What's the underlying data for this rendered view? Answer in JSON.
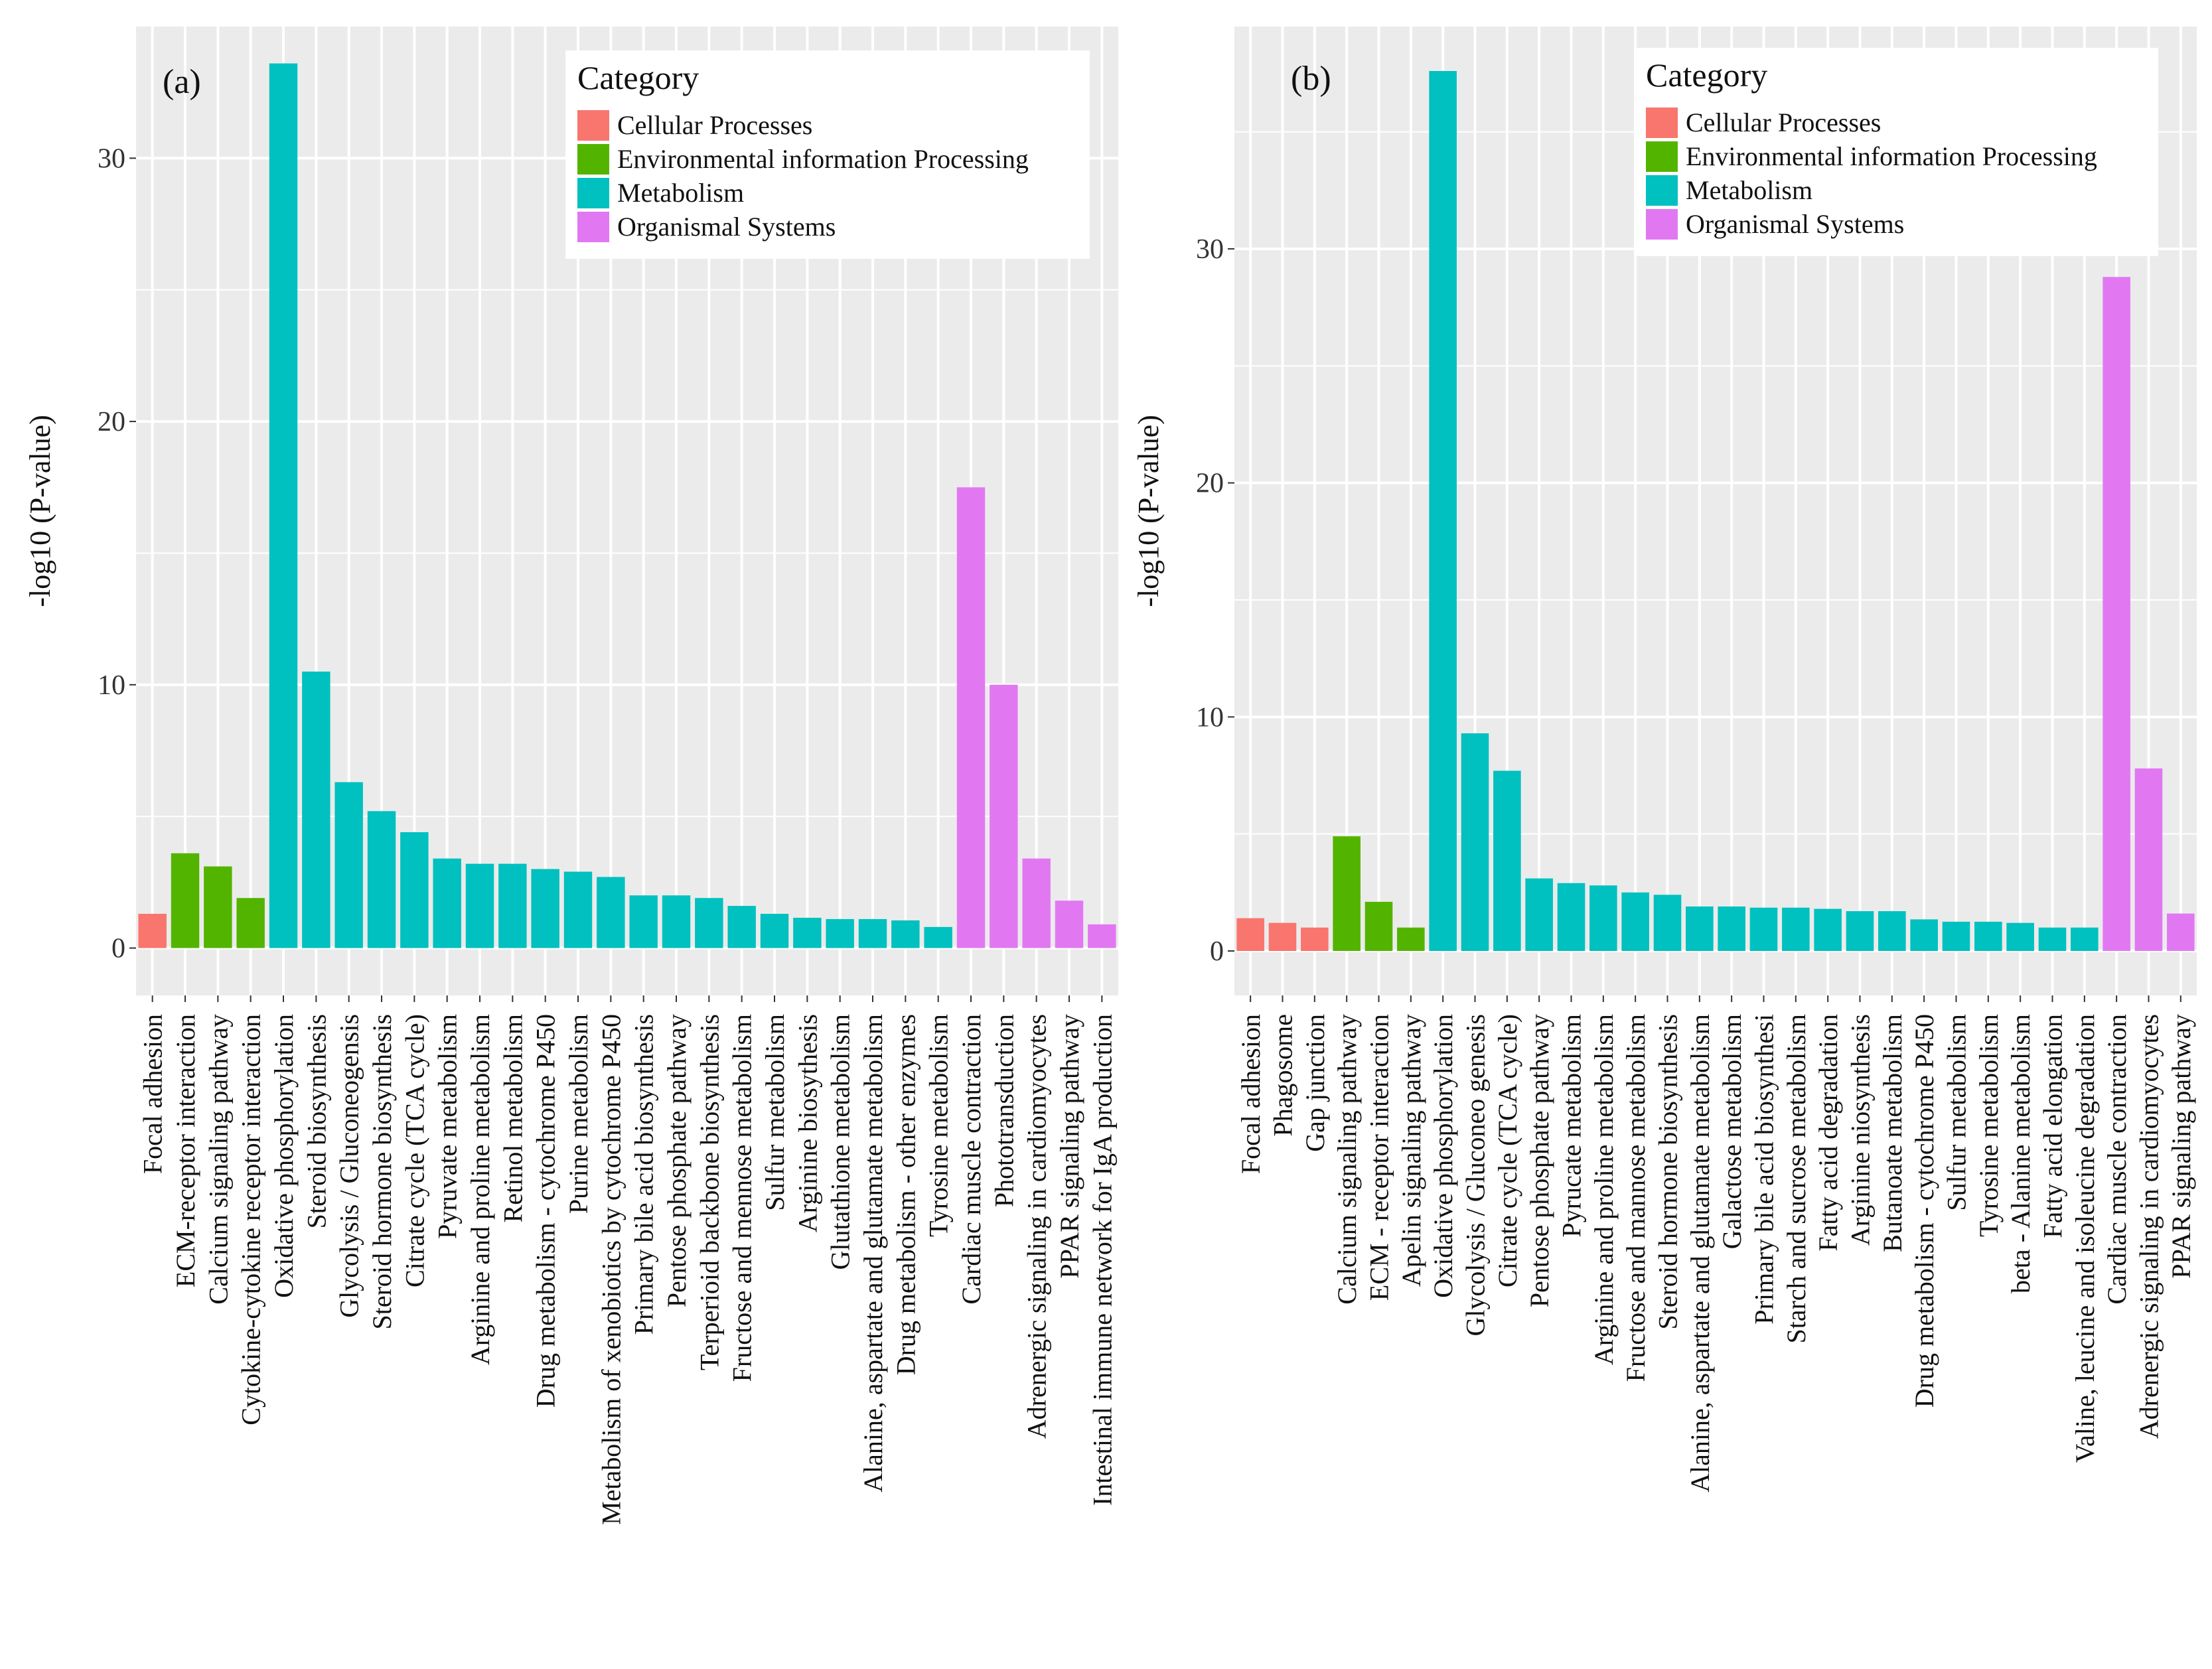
{
  "legend": {
    "title": "Category",
    "items": [
      {
        "name": "Cellular Processes",
        "color": "#F8766D"
      },
      {
        "name": "Environmental information Processing",
        "color": "#53B400"
      },
      {
        "name": "Metabolism",
        "color": "#00C0C0"
      },
      {
        "name": "Organismal Systems",
        "color": "#E178F2"
      }
    ]
  },
  "panel_background": "#EBEBEB",
  "chart_data": [
    {
      "type": "bar",
      "title": "(a)",
      "xlabel": "",
      "ylabel": "-log10 (P-value)",
      "ylim": [
        -1.8,
        35
      ],
      "yticks": [
        0,
        10,
        20,
        30
      ],
      "grid": true,
      "legend_position": "top-right",
      "categories": [
        "Focal adhesion",
        "ECM-receptor interaction",
        "Calcium signaling pathway",
        "Cytokine-cytokine receptor interaction",
        "Oxidative phosphorylation",
        "Steroid biosynthesis",
        "Glycolysis / Gluconeogensis",
        "Steroid hormone biosynthesis",
        "Citrate cycle (TCA cycle)",
        "Pyruvate metabolism",
        "Arginine and proline metabolism",
        "Retinol metabolism",
        "Drug metabolism - cytochrome P450",
        "Purine metabolism",
        "Metabolism of xenobiotics by cytochrome P450",
        "Primary bile acid biosynthesis",
        "Pentose phosphate pathway",
        "Terperioid backbone biosynthesis",
        "Fructose and mennose metabolism",
        "Sulfur metabolism",
        "Arginine biosythesis",
        "Glutathione metabolism",
        "Alanine, aspartate and glutamate metabolism",
        "Drug metabolism - other enzymes",
        "Tyrosine metabolism",
        "Cardiac muscle contraction",
        "Phototransduction",
        "Adrenergic signaling in cardiomyocytes",
        "PPAR signaling pathway",
        "Intestinal immune network for IgA production"
      ],
      "values": [
        1.3,
        3.6,
        3.1,
        1.9,
        33.6,
        10.5,
        6.3,
        5.2,
        4.4,
        3.4,
        3.2,
        3.2,
        3.0,
        2.9,
        2.7,
        2.0,
        2.0,
        1.9,
        1.6,
        1.3,
        1.15,
        1.1,
        1.1,
        1.05,
        0.8,
        17.5,
        10.0,
        3.4,
        1.8,
        0.9
      ],
      "groups": [
        "Cellular Processes",
        "Environmental information Processing",
        "Environmental information Processing",
        "Environmental information Processing",
        "Metabolism",
        "Metabolism",
        "Metabolism",
        "Metabolism",
        "Metabolism",
        "Metabolism",
        "Metabolism",
        "Metabolism",
        "Metabolism",
        "Metabolism",
        "Metabolism",
        "Metabolism",
        "Metabolism",
        "Metabolism",
        "Metabolism",
        "Metabolism",
        "Metabolism",
        "Metabolism",
        "Metabolism",
        "Metabolism",
        "Metabolism",
        "Organismal Systems",
        "Organismal Systems",
        "Organismal Systems",
        "Organismal Systems",
        "Organismal Systems"
      ]
    },
    {
      "type": "bar",
      "title": "(b)",
      "xlabel": "",
      "ylabel": "-log10 (P-value)",
      "ylim": [
        -1.9,
        39.5
      ],
      "yticks": [
        0,
        10,
        20,
        30
      ],
      "grid": true,
      "legend_position": "top-right",
      "categories": [
        "Focal adhesion",
        "Phagosome",
        "Gap junction",
        "Calcium signaling pathway",
        "ECM - receptor interaction",
        "Apelin signaling pathway",
        "Oxidative phosphorylation",
        "Glycolysis / Gluconeo genesis",
        "Citrate cycle (TCA cycle)",
        "Pentose phosphate pathway",
        "Pyrucate metabolism",
        "Arginine and proline metabolism",
        "Fructose and mannose metabolism",
        "Steroid hormone biosynthesis",
        "Alanine, aspartate and glutamate metabolism",
        "Galactose metabolism",
        "Primary bile acid biosynthesi",
        "Starch and sucrose metabolism",
        "Fatty acid degradation",
        "Arginine niosynthesis",
        "Butanoate metabolism",
        "Drug metabolism - cytochrome P450",
        "Sulfur metabolism",
        "Tyrosine metabolism",
        "beta - Alanine metabolism",
        "Fatty acid elongation",
        "Valine, leucine and isoleucine degradation",
        "Cardiac muscle contraction",
        "Adrenergic signaling in cardiomyocytes",
        "PPAR signaling pathway"
      ],
      "values": [
        1.4,
        1.2,
        1.0,
        4.9,
        2.1,
        1.0,
        37.6,
        9.3,
        7.7,
        3.1,
        2.9,
        2.8,
        2.5,
        2.4,
        1.9,
        1.9,
        1.85,
        1.85,
        1.8,
        1.7,
        1.7,
        1.35,
        1.25,
        1.25,
        1.2,
        1.0,
        1.0,
        28.8,
        7.8,
        1.6
      ],
      "groups": [
        "Cellular Processes",
        "Cellular Processes",
        "Cellular Processes",
        "Environmental information Processing",
        "Environmental information Processing",
        "Environmental information Processing",
        "Metabolism",
        "Metabolism",
        "Metabolism",
        "Metabolism",
        "Metabolism",
        "Metabolism",
        "Metabolism",
        "Metabolism",
        "Metabolism",
        "Metabolism",
        "Metabolism",
        "Metabolism",
        "Metabolism",
        "Metabolism",
        "Metabolism",
        "Metabolism",
        "Metabolism",
        "Metabolism",
        "Metabolism",
        "Metabolism",
        "Metabolism",
        "Organismal Systems",
        "Organismal Systems",
        "Organismal Systems"
      ]
    }
  ]
}
